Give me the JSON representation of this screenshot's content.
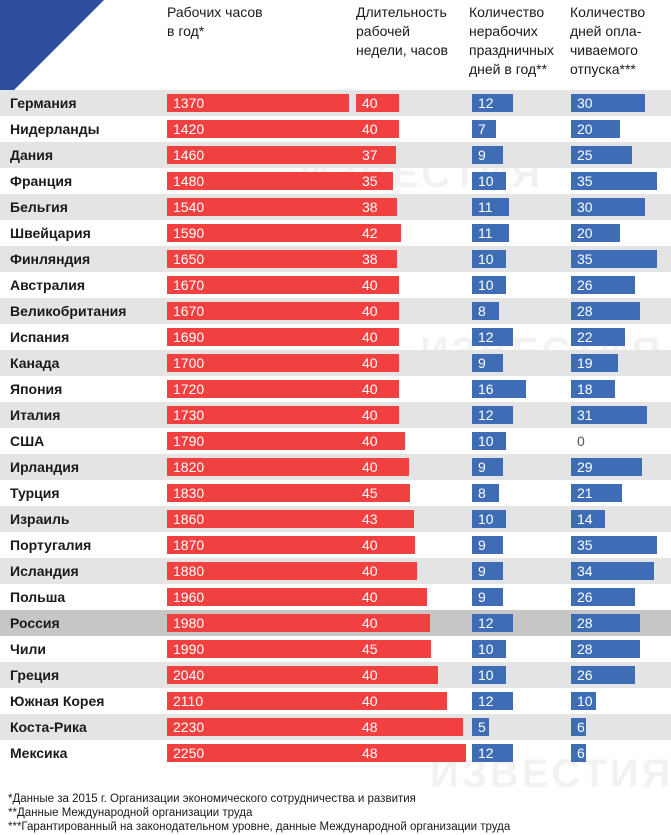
{
  "colors": {
    "hours": "#f0403f",
    "week": "#f0403f",
    "holidays": "#3e6db5",
    "vacation": "#3e6db5",
    "corner": "#2f4f9e"
  },
  "headers": {
    "hours": [
      "Рабочих часов",
      "в год*"
    ],
    "week": [
      "Длительность",
      "рабочей",
      "недели, часов"
    ],
    "holidays": [
      "Количество",
      "нерабочих",
      "праздничных",
      "дней в год**"
    ],
    "vacation": [
      "Количество",
      "дней опла-",
      "чиваемого",
      "отпуска***"
    ]
  },
  "watermark": "ИЗВЕСТИЯ",
  "footnotes": [
    "*Данные за 2015 г. Организации экономического сотрудничества и развития",
    "**Данные Международной организации труда",
    "***Гарантированный на законодательном уровне, данные Международной организации труда"
  ],
  "chart_data": {
    "type": "table",
    "highlight_row": "Россия",
    "columns": [
      "Рабочих часов в год*",
      "Длительность рабочей недели, часов",
      "Количество нерабочих праздничных дней в год**",
      "Количество дней оплачиваемого отпуска***"
    ],
    "rows": [
      {
        "country": "Германия",
        "hours": 1370,
        "week": 40,
        "holidays": 12,
        "vacation": 30
      },
      {
        "country": "Нидерланды",
        "hours": 1420,
        "week": 40,
        "holidays": 7,
        "vacation": 20
      },
      {
        "country": "Дания",
        "hours": 1460,
        "week": 37,
        "holidays": 9,
        "vacation": 25
      },
      {
        "country": "Франция",
        "hours": 1480,
        "week": 35,
        "holidays": 10,
        "vacation": 35
      },
      {
        "country": "Бельгия",
        "hours": 1540,
        "week": 38,
        "holidays": 11,
        "vacation": 30
      },
      {
        "country": "Швейцария",
        "hours": 1590,
        "week": 42,
        "holidays": 11,
        "vacation": 20
      },
      {
        "country": "Финляндия",
        "hours": 1650,
        "week": 38,
        "holidays": 10,
        "vacation": 35
      },
      {
        "country": "Австралия",
        "hours": 1670,
        "week": 40,
        "holidays": 10,
        "vacation": 26
      },
      {
        "country": "Великобритания",
        "hours": 1670,
        "week": 40,
        "holidays": 8,
        "vacation": 28
      },
      {
        "country": "Испания",
        "hours": 1690,
        "week": 40,
        "holidays": 12,
        "vacation": 22
      },
      {
        "country": "Канада",
        "hours": 1700,
        "week": 40,
        "holidays": 9,
        "vacation": 19
      },
      {
        "country": "Япония",
        "hours": 1720,
        "week": 40,
        "holidays": 16,
        "vacation": 18
      },
      {
        "country": "Италия",
        "hours": 1730,
        "week": 40,
        "holidays": 12,
        "vacation": 31
      },
      {
        "country": "США",
        "hours": 1790,
        "week": 40,
        "holidays": 10,
        "vacation": 0
      },
      {
        "country": "Ирландия",
        "hours": 1820,
        "week": 40,
        "holidays": 9,
        "vacation": 29
      },
      {
        "country": "Турция",
        "hours": 1830,
        "week": 45,
        "holidays": 8,
        "vacation": 21
      },
      {
        "country": "Израиль",
        "hours": 1860,
        "week": 43,
        "holidays": 10,
        "vacation": 14
      },
      {
        "country": "Португалия",
        "hours": 1870,
        "week": 40,
        "holidays": 9,
        "vacation": 35
      },
      {
        "country": "Исландия",
        "hours": 1880,
        "week": 40,
        "holidays": 9,
        "vacation": 34
      },
      {
        "country": "Польша",
        "hours": 1960,
        "week": 40,
        "holidays": 9,
        "vacation": 26
      },
      {
        "country": "Россия",
        "hours": 1980,
        "week": 40,
        "holidays": 12,
        "vacation": 28
      },
      {
        "country": "Чили",
        "hours": 1990,
        "week": 45,
        "holidays": 10,
        "vacation": 28
      },
      {
        "country": "Греция",
        "hours": 2040,
        "week": 40,
        "holidays": 10,
        "vacation": 26
      },
      {
        "country": "Южная Корея",
        "hours": 2110,
        "week": 40,
        "holidays": 12,
        "vacation": 10
      },
      {
        "country": "Коста-Рика",
        "hours": 2230,
        "week": 48,
        "holidays": 5,
        "vacation": 6
      },
      {
        "country": "Мексика",
        "hours": 2250,
        "week": 48,
        "holidays": 12,
        "vacation": 6
      }
    ]
  }
}
